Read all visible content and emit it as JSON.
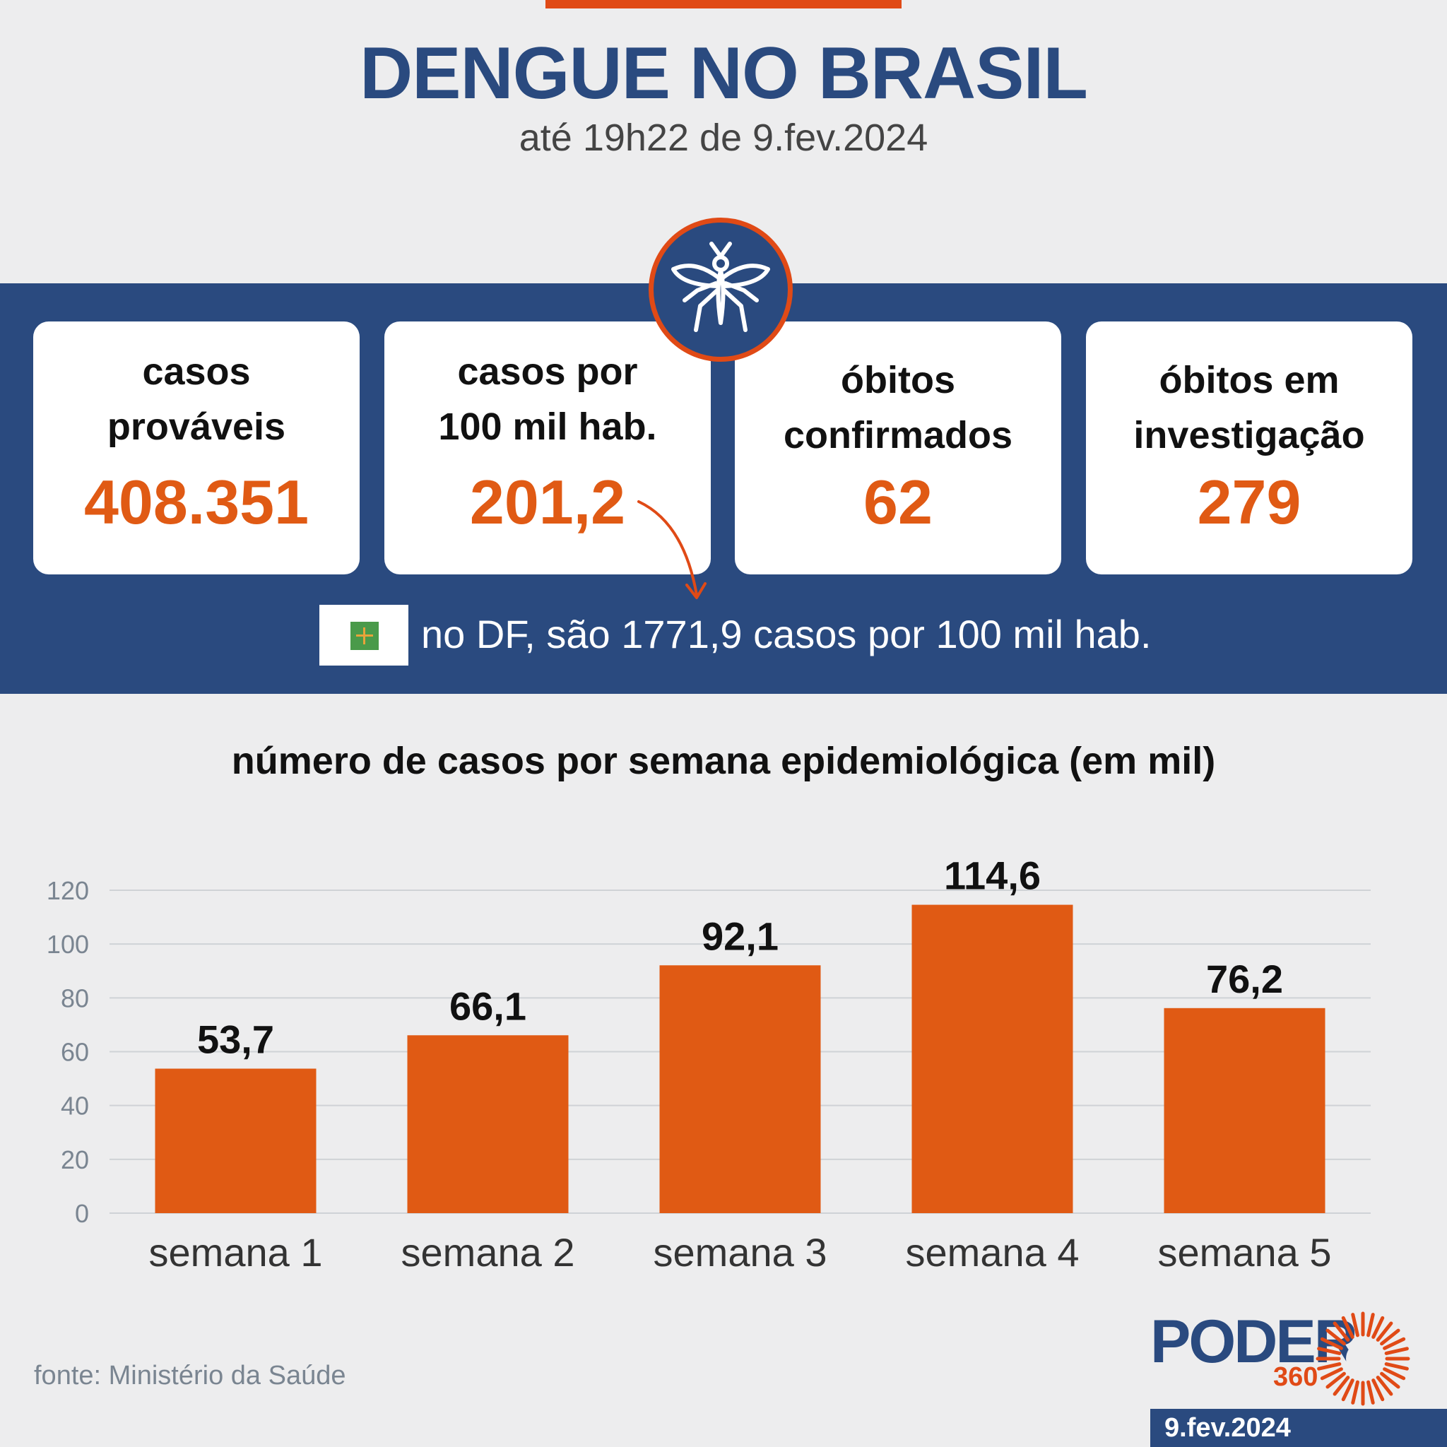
{
  "header": {
    "title": "DENGUE NO BRASIL",
    "subtitle": "até 19h22 de 9.fev.2024"
  },
  "cards": [
    {
      "label": "casos\nprováveis",
      "value": "408.351"
    },
    {
      "label": "casos por\n100 mil hab.",
      "value": "201,2"
    },
    {
      "label": "óbitos\nconfirmados",
      "value": "62"
    },
    {
      "label": "óbitos em\ninvestigação",
      "value": "279"
    }
  ],
  "df_note": "no DF, são 1771,9 casos por 100 mil hab.",
  "colors": {
    "navy": "#2a4a7f",
    "orange": "#e05a14",
    "background": "#ededee"
  },
  "chart_data": {
    "type": "bar",
    "title": "número de casos por semana epidemiológica (em mil)",
    "categories": [
      "semana 1",
      "semana 2",
      "semana 3",
      "semana 4",
      "semana 5"
    ],
    "values": [
      53.7,
      66.1,
      92.1,
      114.6,
      76.2
    ],
    "value_labels": [
      "53,7",
      "66,1",
      "92,1",
      "114,6",
      "76,2"
    ],
    "yticks": [
      0,
      20,
      40,
      60,
      80,
      100,
      120
    ],
    "ylim": [
      0,
      120
    ],
    "grid": true,
    "xlabel": "",
    "ylabel": ""
  },
  "footer": {
    "source": "fonte: Ministério da Saúde",
    "logo_word": "PODER",
    "logo_number": "360",
    "date": "9.fev.2024"
  }
}
